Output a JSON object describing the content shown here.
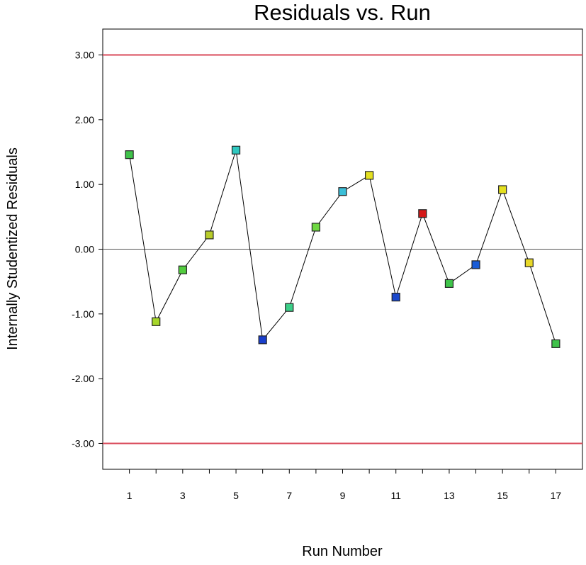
{
  "chart_data": {
    "type": "scatter",
    "title": "Residuals vs. Run",
    "xlabel": "Run Number",
    "ylabel": "Internally Studentized Residuals",
    "xlim": [
      0,
      18
    ],
    "ylim": [
      -3.4,
      3.4
    ],
    "x_ticks": [
      1,
      2,
      3,
      4,
      5,
      6,
      7,
      8,
      9,
      10,
      11,
      12,
      13,
      14,
      15,
      16,
      17
    ],
    "x_tick_labels": [
      "1",
      "",
      "3",
      "",
      "5",
      "",
      "7",
      "",
      "9",
      "",
      "11",
      "",
      "13",
      "",
      "15",
      "",
      "17"
    ],
    "y_ticks": [
      3,
      2,
      1,
      0,
      -1,
      -2,
      -3
    ],
    "y_tick_labels": [
      "3.00",
      "2.00",
      "1.00",
      "0.00",
      "-1.00",
      "-2.00",
      "-3.00"
    ],
    "limit_lines": [
      3.0,
      -3.0
    ],
    "zero_line": 0,
    "connected": true,
    "grid": false,
    "x": [
      1,
      2,
      3,
      4,
      5,
      6,
      7,
      8,
      9,
      10,
      11,
      12,
      13,
      14,
      15,
      16,
      17
    ],
    "y": [
      1.46,
      -1.12,
      -0.32,
      0.22,
      1.53,
      -1.4,
      -0.9,
      0.34,
      0.89,
      1.14,
      -0.74,
      0.55,
      -0.53,
      -0.24,
      0.92,
      -0.21,
      -1.46
    ],
    "point_colors": [
      "#3fc24a",
      "#a6d62a",
      "#52cc3e",
      "#b8cc2a",
      "#2fc8c0",
      "#1a3fcc",
      "#3ccf88",
      "#6fd842",
      "#3bbfd8",
      "#e4e020",
      "#1a48cc",
      "#d41818",
      "#3fc44a",
      "#1a5cd6",
      "#e4e020",
      "#e8d828",
      "#3fc24a"
    ],
    "colors": {
      "limit_line": "#d94a5a",
      "zero_line": "#555555",
      "series_line": "#000000",
      "frame": "#000000"
    }
  }
}
